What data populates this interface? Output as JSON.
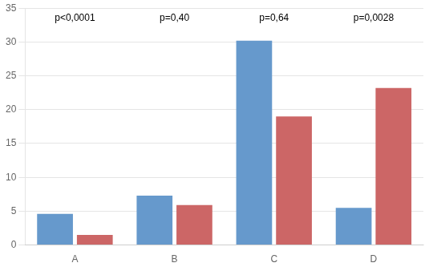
{
  "chart_data": {
    "type": "bar",
    "categories": [
      "A",
      "B",
      "C",
      "D"
    ],
    "series": [
      {
        "color": "#6699CC",
        "values": [
          4.6,
          7.3,
          30.2,
          5.5
        ]
      },
      {
        "color": "#CC6666",
        "values": [
          1.5,
          5.9,
          19.0,
          23.2
        ]
      }
    ],
    "annotations": [
      "p<0,0001",
      "p=0,40",
      "p=0,64",
      "p=0,0028"
    ],
    "ylim": [
      0,
      35
    ],
    "yticks": [
      0,
      5,
      10,
      15,
      20,
      25,
      30,
      35
    ],
    "grid": true
  }
}
